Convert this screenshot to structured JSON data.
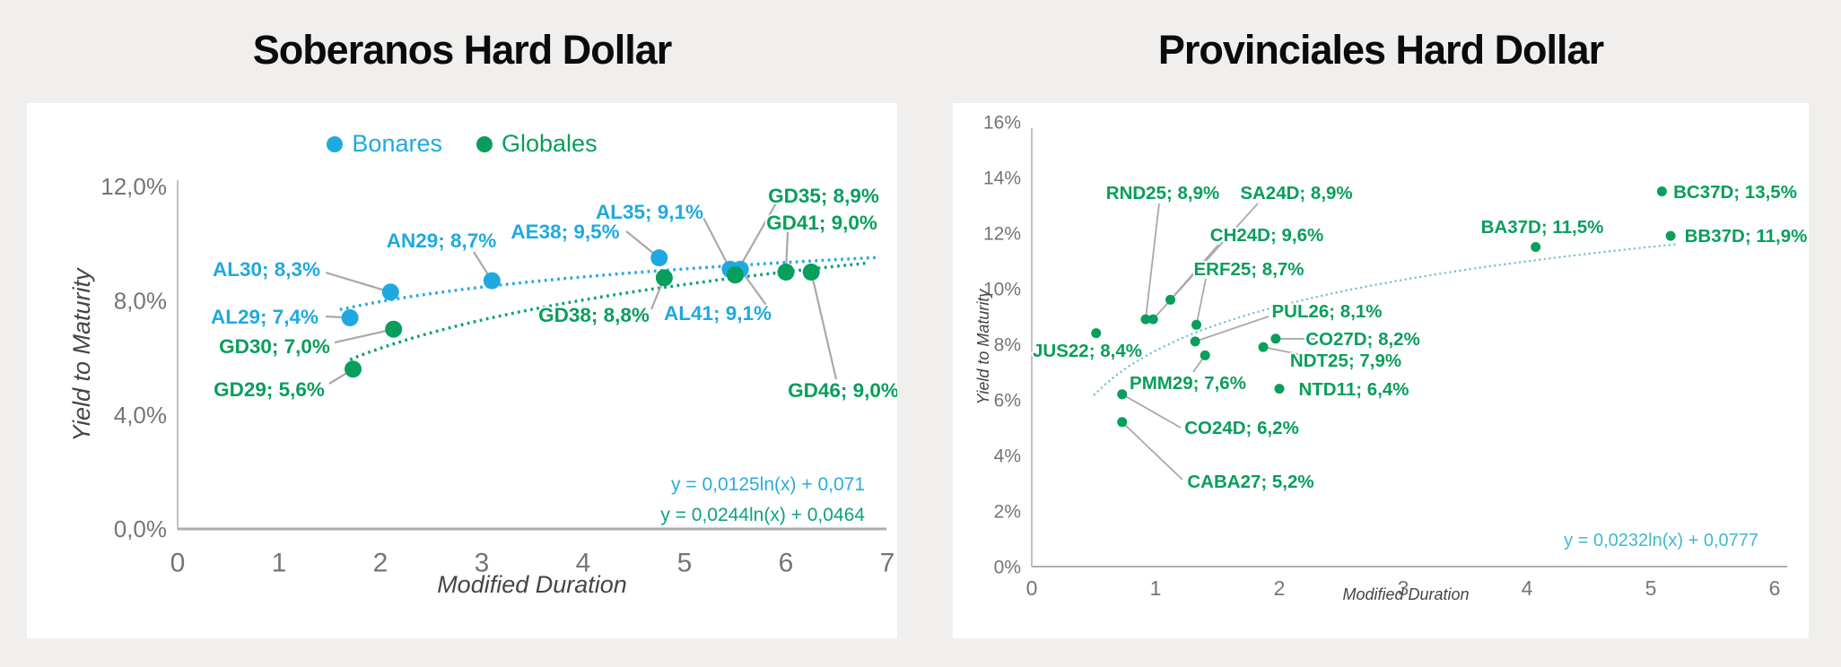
{
  "page": {
    "bg_color": "#f0efee",
    "card_color": "#ffffff"
  },
  "chart_data": [
    {
      "type": "scatter",
      "title": "Soberanos Hard Dollar",
      "xlabel": "Modified Duration",
      "ylabel": "Yield to Maturity",
      "xlim": [
        0,
        7
      ],
      "ylim": [
        0,
        12
      ],
      "grid": false,
      "legend_position": "top-center",
      "x_ticks": [
        {
          "v": 0,
          "t": "0"
        },
        {
          "v": 1,
          "t": "1"
        },
        {
          "v": 2,
          "t": "2"
        },
        {
          "v": 3,
          "t": "3"
        },
        {
          "v": 4,
          "t": "4"
        },
        {
          "v": 5,
          "t": "5"
        },
        {
          "v": 6,
          "t": "6"
        },
        {
          "v": 7,
          "t": "7"
        }
      ],
      "y_ticks": [
        {
          "v": 0,
          "t": "0,0%"
        },
        {
          "v": 4,
          "t": "4,0%"
        },
        {
          "v": 8,
          "t": "8,0%"
        },
        {
          "v": 12,
          "t": "12,0%"
        }
      ],
      "legend": [
        {
          "name": "Bonares",
          "color": "#1FA9E1"
        },
        {
          "name": "Globales",
          "color": "#089E5C"
        }
      ],
      "series": [
        {
          "name": "Bonares",
          "color": "#1FA9E1",
          "points": [
            {
              "id": "AL29",
              "x": 1.7,
              "y": 7.4,
              "label": "AL29; 7,4%",
              "lbl": [
                265,
                238
              ],
              "ldr": [
                333,
                238
              ]
            },
            {
              "id": "AL30",
              "x": 2.1,
              "y": 8.3,
              "label": "AL30; 8,3%",
              "lbl": [
                267,
                185
              ],
              "ldr": [
                333,
                189
              ]
            },
            {
              "id": "AN29",
              "x": 3.1,
              "y": 8.7,
              "label": "AN29; 8,7%",
              "lbl": [
                462,
                153
              ],
              "ldr": [
                498,
                166
              ]
            },
            {
              "id": "AE38",
              "x": 4.75,
              "y": 9.5,
              "label": "AE38; 9,5%",
              "lbl": [
                600,
                143
              ],
              "ldr": [
                668,
                143
              ]
            },
            {
              "id": "AL35",
              "x": 5.45,
              "y": 9.1,
              "label": "AL35; 9,1%",
              "lbl": [
                694,
                121
              ],
              "ldr": [
                752,
                124
              ]
            },
            {
              "id": "AL41",
              "x": 5.55,
              "y": 9.1,
              "label": "AL41; 9,1%",
              "lbl": [
                770,
                234
              ],
              "ldr": [
                826,
                228
              ]
            }
          ]
        },
        {
          "name": "Globales",
          "color": "#089E5C",
          "points": [
            {
              "id": "GD29",
              "x": 1.73,
              "y": 5.6,
              "label": "GD29; 5,6%",
              "lbl": [
                270,
                319
              ],
              "ldr": [
                337,
                313
              ]
            },
            {
              "id": "GD30",
              "x": 2.13,
              "y": 7.0,
              "label": "GD30; 7,0%",
              "lbl": [
                276,
                271
              ],
              "ldr": [
                343,
                267
              ]
            },
            {
              "id": "GD38",
              "x": 4.8,
              "y": 8.8,
              "label": "GD38; 8,8%",
              "lbl": [
                632,
                236
              ],
              "ldr": [
                696,
                230
              ]
            },
            {
              "id": "GD35",
              "x": 5.5,
              "y": 8.9,
              "label": "GD35; 8,9%",
              "lbl": [
                888,
                103
              ],
              "ldr": [
                836,
                110
              ]
            },
            {
              "id": "GD41",
              "x": 6.0,
              "y": 9.0,
              "label": "GD41; 9,0%",
              "lbl": [
                886,
                133
              ],
              "ldr": [
                848,
                144
              ]
            },
            {
              "id": "GD46",
              "x": 6.25,
              "y": 9.0,
              "label": "GD46; 9,0%",
              "lbl": [
                910,
                320
              ],
              "ldr": [
                902,
                308
              ]
            }
          ]
        }
      ],
      "trendlines": [
        {
          "series": "Bonares",
          "equation": "y = 0,0125ln(x) + 0,071",
          "a": 0.0125,
          "b": 0.071,
          "x_start": 1.6,
          "x_end": 6.9,
          "color": "#29ABE2",
          "eq_color": "#29ABE2"
        },
        {
          "series": "Globales",
          "equation": "y = 0,0244ln(x) + 0,0464",
          "a": 0.0244,
          "b": 0.0464,
          "x_start": 1.7,
          "x_end": 6.8,
          "color": "#0CA184",
          "eq_color": "#0CA184"
        }
      ]
    },
    {
      "type": "scatter",
      "title": "Provinciales Hard Dollar",
      "xlabel": "Modified Duration",
      "ylabel": "Yield to Maturity",
      "xlim": [
        0,
        6
      ],
      "ylim": [
        0,
        16
      ],
      "grid": false,
      "legend": [],
      "x_ticks": [
        {
          "v": 0,
          "t": "0"
        },
        {
          "v": 1,
          "t": "1"
        },
        {
          "v": 2,
          "t": "2"
        },
        {
          "v": 3,
          "t": "3"
        },
        {
          "v": 4,
          "t": "4"
        },
        {
          "v": 5,
          "t": "5"
        },
        {
          "v": 6,
          "t": "6"
        }
      ],
      "y_ticks": [
        {
          "v": 0,
          "t": "0%"
        },
        {
          "v": 2,
          "t": "2%"
        },
        {
          "v": 4,
          "t": "4%"
        },
        {
          "v": 6,
          "t": "6%"
        },
        {
          "v": 8,
          "t": "8%"
        },
        {
          "v": 10,
          "t": "10%"
        },
        {
          "v": 12,
          "t": "12%"
        },
        {
          "v": 14,
          "t": "14%"
        },
        {
          "v": 16,
          "t": "16%"
        }
      ],
      "series": [
        {
          "name": "Provinciales",
          "color": "#089E5C",
          "points": [
            {
              "id": "JUS22",
              "x": 0.52,
              "y": 8.4,
              "label": "JUS22; 8,4%",
              "lbl": [
                150,
                276
              ],
              "ldr": null
            },
            {
              "id": "RND25",
              "x": 0.92,
              "y": 8.9,
              "label": "RND25; 8,9%",
              "lbl": [
                234,
                100
              ],
              "ldr": [
                230,
                112
              ]
            },
            {
              "id": "SA24D",
              "x": 0.98,
              "y": 8.9,
              "label": "SA24D; 8,9%",
              "lbl": [
                383,
                100
              ],
              "ldr": [
                340,
                112
              ]
            },
            {
              "id": "CH24D",
              "x": 1.12,
              "y": 9.6,
              "label": "CH24D; 9,6%",
              "lbl": [
                350,
                147
              ],
              "ldr": [
                296,
                158
              ]
            },
            {
              "id": "ERF25",
              "x": 1.33,
              "y": 8.7,
              "label": "ERF25; 8,7%",
              "lbl": [
                330,
                185
              ],
              "ldr": [
                282,
                196
              ]
            },
            {
              "id": "PUL26",
              "x": 1.32,
              "y": 8.1,
              "label": "PUL26; 8,1%",
              "lbl": [
                417,
                232
              ],
              "ldr": [
                352,
                238
              ]
            },
            {
              "id": "PMM29",
              "x": 1.4,
              "y": 7.6,
              "label": "PMM29; 7,6%",
              "lbl": [
                262,
                312
              ],
              "ldr": [
                268,
                300
              ]
            },
            {
              "id": "NDT25",
              "x": 1.87,
              "y": 7.9,
              "label": "NDT25; 7,9%",
              "lbl": [
                438,
                287
              ],
              "ldr": [
                390,
                281
              ]
            },
            {
              "id": "CO27D",
              "x": 1.97,
              "y": 8.2,
              "label": "CO27D; 8,2%",
              "lbl": [
                457,
                263
              ],
              "ldr": [
                404,
                263
              ]
            },
            {
              "id": "NTD11",
              "x": 2.0,
              "y": 6.4,
              "label": "NTD11; 6,4%",
              "lbl": [
                447,
                319
              ],
              "ldr": null
            },
            {
              "id": "CO24D",
              "x": 0.73,
              "y": 6.2,
              "label": "CO24D; 6,2%",
              "lbl": [
                322,
                362
              ],
              "ldr": [
                254,
                362
              ]
            },
            {
              "id": "CABA27",
              "x": 0.73,
              "y": 5.2,
              "label": "CABA27; 5,2%",
              "lbl": [
                332,
                422
              ],
              "ldr": [
                256,
                420
              ]
            },
            {
              "id": "BA37D",
              "x": 4.07,
              "y": 11.5,
              "label": "BA37D; 11,5%",
              "lbl": [
                657,
                138
              ],
              "ldr": null
            },
            {
              "id": "BC37D",
              "x": 5.09,
              "y": 13.5,
              "label": "BC37D; 13,5%",
              "lbl": [
                872,
                99
              ],
              "ldr": null
            },
            {
              "id": "BB37D",
              "x": 5.16,
              "y": 11.9,
              "label": "BB37D; 11,9%",
              "lbl": [
                884,
                148
              ],
              "ldr": null
            }
          ]
        }
      ],
      "trendlines": [
        {
          "series": "Provinciales",
          "equation": "y = 0,0232ln(x) + 0,0777",
          "a": 0.0232,
          "b": 0.0777,
          "x_start": 0.5,
          "x_end": 5.2,
          "color": "#6FC2CE",
          "eq_color": "#3FB9CE"
        }
      ]
    }
  ]
}
